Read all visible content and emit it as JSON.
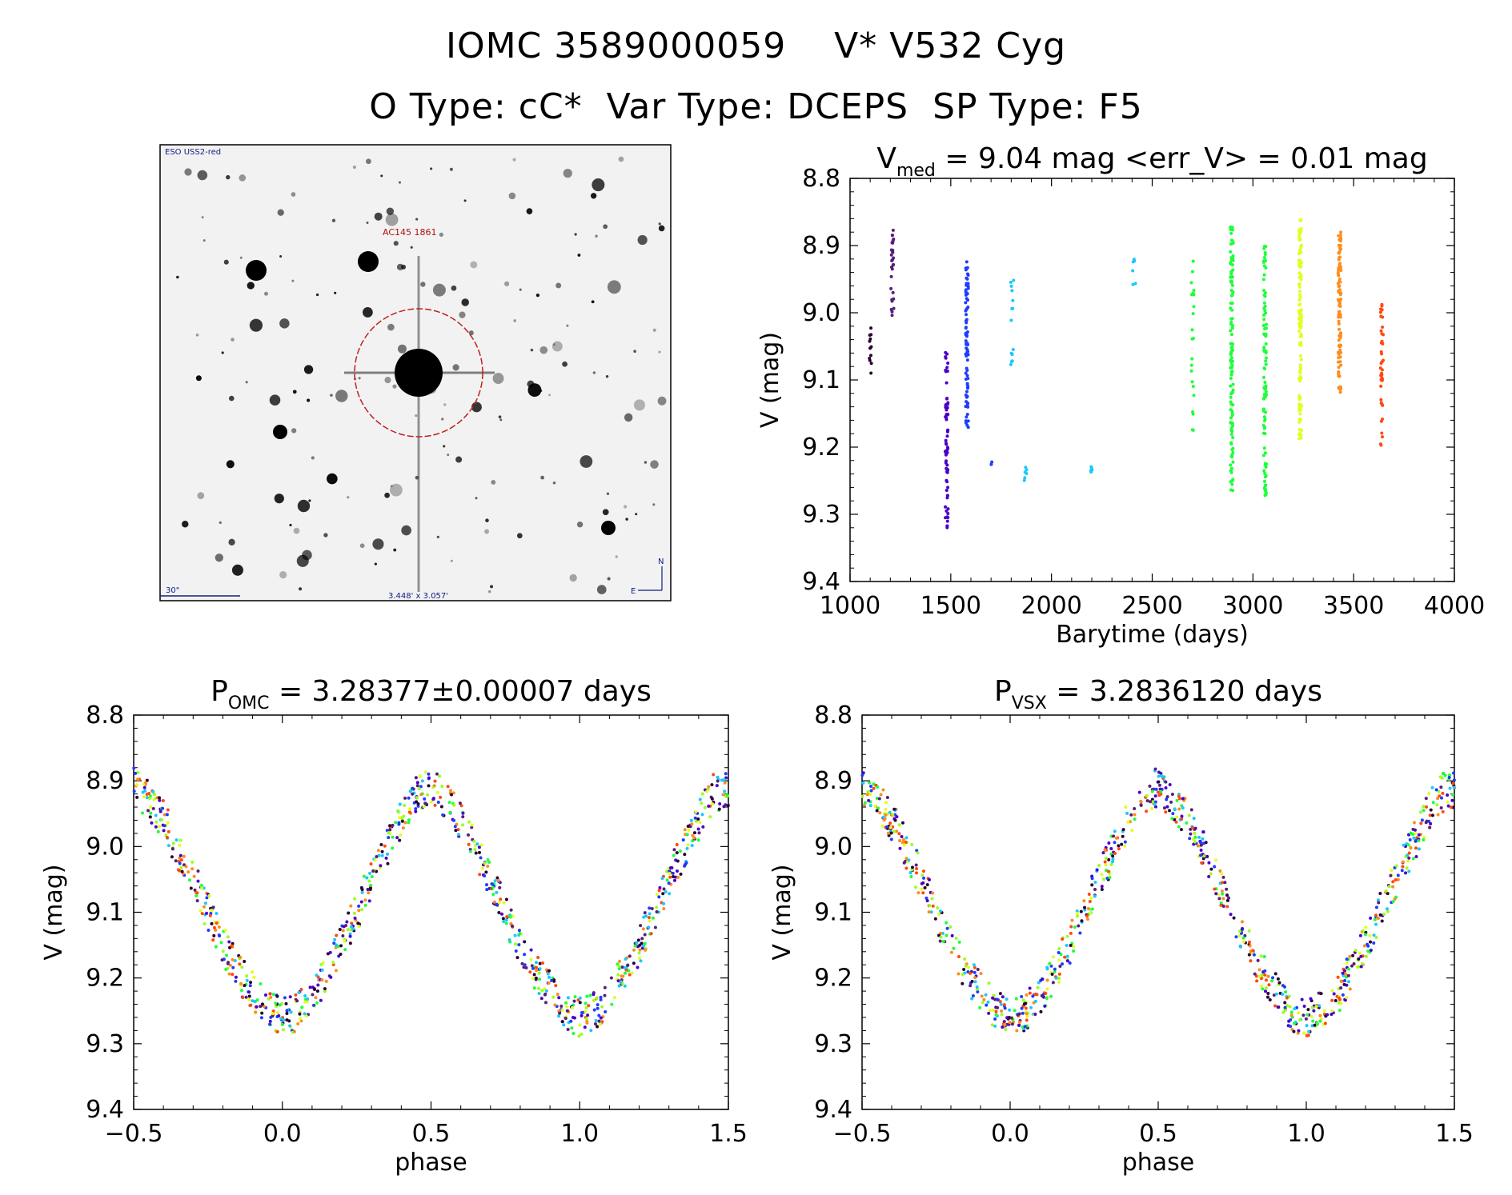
{
  "header": {
    "line1": "IOMC 3589000059    V* V532 Cyg",
    "line2": "O Type: cC*  Var Type: DCEPS  SP Type: F5"
  },
  "image_panel": {
    "survey_label": "ESO USS2-red",
    "target_label": "AC145 1861",
    "scale_label": "30\"",
    "field_label": "3.448' x 3.057'",
    "compass_n": "N",
    "compass_e": "E"
  },
  "colors": {
    "palette": [
      "#2a0033",
      "#5a1e7a",
      "#4a00c8",
      "#1f3cff",
      "#19c8ff",
      "#1eff3a",
      "#99ff1f",
      "#e1ff1f",
      "#ff8c1e",
      "#ff4a0f"
    ]
  },
  "chart_data": [
    {
      "type": "scatter",
      "title_main": "V",
      "title_sub": "med",
      "title_rest": " = 9.04 mag <err_V> = 0.01 mag",
      "xlabel": "Barytime (days)",
      "ylabel": "V (mag)",
      "xlim": [
        1000,
        4000
      ],
      "ylim": [
        9.4,
        8.8
      ],
      "xticks": [
        "1000",
        "1500",
        "2000",
        "2500",
        "3000",
        "3500",
        "4000"
      ],
      "yticks": [
        "8.8",
        "8.9",
        "9.0",
        "9.1",
        "9.2",
        "9.3",
        "9.4"
      ],
      "groups": [
        {
          "x": 1100,
          "y": [
            9.02,
            9.1
          ],
          "color": 0,
          "n": 12
        },
        {
          "x": 1210,
          "y": [
            8.87,
            9.01
          ],
          "color": 1,
          "n": 30
        },
        {
          "x": 1480,
          "y": [
            9.05,
            9.32
          ],
          "color": 2,
          "n": 70
        },
        {
          "x": 1580,
          "y": [
            8.92,
            9.18
          ],
          "color": 3,
          "n": 80
        },
        {
          "x": 1700,
          "y": [
            9.22,
            9.23
          ],
          "color": 3,
          "n": 2
        },
        {
          "x": 1805,
          "y": [
            8.95,
            9.08
          ],
          "color": 4,
          "n": 14
        },
        {
          "x": 1870,
          "y": [
            9.23,
            9.25
          ],
          "color": 4,
          "n": 6
        },
        {
          "x": 2200,
          "y": [
            9.22,
            9.24
          ],
          "color": 4,
          "n": 6
        },
        {
          "x": 2410,
          "y": [
            8.92,
            8.96
          ],
          "color": 4,
          "n": 6
        },
        {
          "x": 2700,
          "y": [
            8.92,
            9.18
          ],
          "color": 5,
          "n": 22
        },
        {
          "x": 2895,
          "y": [
            8.87,
            9.28
          ],
          "color": 5,
          "n": 120
        },
        {
          "x": 3060,
          "y": [
            8.9,
            9.28
          ],
          "color": 5,
          "n": 100
        },
        {
          "x": 3235,
          "y": [
            8.86,
            9.19
          ],
          "color": 7,
          "n": 110
        },
        {
          "x": 3430,
          "y": [
            8.88,
            9.12
          ],
          "color": 8,
          "n": 100
        },
        {
          "x": 3640,
          "y": [
            8.98,
            9.2
          ],
          "color": 9,
          "n": 40
        }
      ]
    },
    {
      "type": "scatter",
      "title_main": "P",
      "title_sub": "OMC",
      "title_rest": " = 3.28377±0.00007 days",
      "xlabel": "phase",
      "ylabel": "V (mag)",
      "xlim": [
        -0.5,
        1.5
      ],
      "ylim": [
        9.4,
        8.8
      ],
      "xticks": [
        "−0.5",
        "0.0",
        "0.5",
        "1.0",
        "1.5"
      ],
      "yticks": [
        "8.8",
        "8.9",
        "9.0",
        "9.1",
        "9.2",
        "9.3",
        "9.4"
      ],
      "curve": {
        "phase": [
          0.0,
          0.05,
          0.1,
          0.15,
          0.2,
          0.3,
          0.4,
          0.45,
          0.5,
          0.55,
          0.6,
          0.7,
          0.8,
          0.85,
          0.9,
          0.95,
          1.0
        ],
        "mag": [
          9.26,
          9.25,
          9.23,
          9.19,
          9.15,
          9.05,
          8.96,
          8.92,
          8.91,
          8.93,
          8.96,
          9.05,
          9.15,
          9.19,
          9.22,
          9.25,
          9.26
        ]
      },
      "n_points": 900,
      "seed": 7
    },
    {
      "type": "scatter",
      "title_main": "P",
      "title_sub": "VSX",
      "title_rest": " = 3.2836120 days",
      "xlabel": "phase",
      "ylabel": "V (mag)",
      "xlim": [
        -0.5,
        1.5
      ],
      "ylim": [
        9.4,
        8.8
      ],
      "xticks": [
        "−0.5",
        "0.0",
        "0.5",
        "1.0",
        "1.5"
      ],
      "yticks": [
        "8.8",
        "8.9",
        "9.0",
        "9.1",
        "9.2",
        "9.3",
        "9.4"
      ],
      "curve": {
        "phase": [
          0.0,
          0.05,
          0.1,
          0.15,
          0.2,
          0.3,
          0.4,
          0.45,
          0.5,
          0.55,
          0.6,
          0.7,
          0.8,
          0.85,
          0.9,
          0.95,
          1.0
        ],
        "mag": [
          9.26,
          9.25,
          9.23,
          9.19,
          9.15,
          9.05,
          8.96,
          8.92,
          8.91,
          8.93,
          8.96,
          9.05,
          9.15,
          9.19,
          9.22,
          9.25,
          9.26
        ]
      },
      "n_points": 900,
      "seed": 11
    }
  ]
}
